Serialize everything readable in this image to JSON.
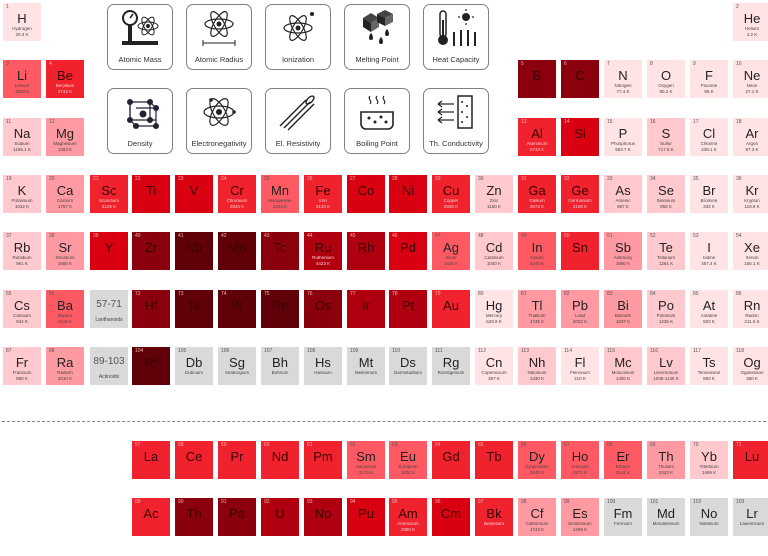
{
  "property_buttons": [
    {
      "key": "atomic_mass",
      "label": "Atomic Mass",
      "icon": "scale-atom-icon"
    },
    {
      "key": "atomic_radius",
      "label": "Atomic Radius",
      "icon": "atom-radius-icon"
    },
    {
      "key": "ionization",
      "label": "Ionization",
      "icon": "ionization-atom-icon"
    },
    {
      "key": "melting_point",
      "label": "Melting Point",
      "icon": "melting-ice-icon"
    },
    {
      "key": "heat_capacity",
      "label": "Heat Capacity",
      "icon": "thermometer-sun-icon"
    },
    {
      "key": "density",
      "label": "Density",
      "icon": "crystal-lattice-icon"
    },
    {
      "key": "electronegativity",
      "label": "Electronegativity",
      "icon": "electron-atom-icon"
    },
    {
      "key": "el_resistivity",
      "label": "El. Resistivity",
      "icon": "cable-icon"
    },
    {
      "key": "boiling_point",
      "label": "Boiling Point",
      "icon": "boiling-pot-icon"
    },
    {
      "key": "th_conductivity",
      "label": "Th. Conductivity",
      "icon": "heat-panel-icon"
    }
  ],
  "range_labels": [
    {
      "range": "57-71",
      "name": "Lanthanoids"
    },
    {
      "range": "89-103",
      "name": "Actinoids"
    }
  ],
  "elements": [
    {
      "n": 1,
      "s": "H",
      "name": "Hydrogen",
      "val": "20.3 K",
      "shade": 1
    },
    {
      "n": 2,
      "s": "He",
      "name": "Helium",
      "val": "4.2 K",
      "shade": 1
    },
    {
      "n": 3,
      "s": "Li",
      "name": "Lithium",
      "val": "1603 K",
      "shade": 4
    },
    {
      "n": 4,
      "s": "Be",
      "name": "Beryllium",
      "val": "2742 K",
      "shade": 5
    },
    {
      "n": 5,
      "s": "B",
      "name": "",
      "val": "",
      "shade": 8
    },
    {
      "n": 6,
      "s": "C",
      "name": "",
      "val": "",
      "shade": 8
    },
    {
      "n": 7,
      "s": "N",
      "name": "Nitrogen",
      "val": "77.4 K",
      "shade": 1
    },
    {
      "n": 8,
      "s": "O",
      "name": "Oxygen",
      "val": "90.2 K",
      "shade": 1
    },
    {
      "n": 9,
      "s": "F",
      "name": "Fluorine",
      "val": "85 K",
      "shade": 1
    },
    {
      "n": 10,
      "s": "Ne",
      "name": "Neon",
      "val": "27.1 K",
      "shade": 1
    },
    {
      "n": 11,
      "s": "Na",
      "name": "Sodium",
      "val": "1156.1 K",
      "shade": 2
    },
    {
      "n": 12,
      "s": "Mg",
      "name": "Magnesium",
      "val": "1363 K",
      "shade": 3
    },
    {
      "n": 13,
      "s": "Al",
      "name": "Aluminium",
      "val": "2743 K",
      "shade": 5
    },
    {
      "n": 14,
      "s": "Si",
      "name": "",
      "val": "",
      "shade": 6
    },
    {
      "n": 15,
      "s": "P",
      "name": "Phosphorus",
      "val": "553.7 K",
      "shade": 1
    },
    {
      "n": 16,
      "s": "S",
      "name": "Sulfur",
      "val": "717.8 K",
      "shade": 2
    },
    {
      "n": 17,
      "s": "Cl",
      "name": "Chlorine",
      "val": "239.1 K",
      "shade": 1
    },
    {
      "n": 18,
      "s": "Ar",
      "name": "Argon",
      "val": "87.3 K",
      "shade": 1
    },
    {
      "n": 19,
      "s": "K",
      "name": "Potassium",
      "val": "1032 K",
      "shade": 2
    },
    {
      "n": 20,
      "s": "Ca",
      "name": "Calcium",
      "val": "1757 K",
      "shade": 3
    },
    {
      "n": 21,
      "s": "Sc",
      "name": "Scandium",
      "val": "3109 K",
      "shade": 5
    },
    {
      "n": 22,
      "s": "Ti",
      "name": "",
      "val": "",
      "shade": 6
    },
    {
      "n": 23,
      "s": "V",
      "name": "",
      "val": "",
      "shade": 6
    },
    {
      "n": 24,
      "s": "Cr",
      "name": "Chromium",
      "val": "2944 K",
      "shade": 5
    },
    {
      "n": 25,
      "s": "Mn",
      "name": "Manganese",
      "val": "2334 K",
      "shade": 4
    },
    {
      "n": 26,
      "s": "Fe",
      "name": "Iron",
      "val": "3134 K",
      "shade": 5
    },
    {
      "n": 27,
      "s": "Co",
      "name": "",
      "val": "",
      "shade": 6
    },
    {
      "n": 28,
      "s": "Ni",
      "name": "",
      "val": "",
      "shade": 6
    },
    {
      "n": 29,
      "s": "Cu",
      "name": "Copper",
      "val": "2835 K",
      "shade": 5
    },
    {
      "n": 30,
      "s": "Zn",
      "name": "Zinc",
      "val": "1180 K",
      "shade": 2
    },
    {
      "n": 31,
      "s": "Ga",
      "name": "Gallium",
      "val": "2673 K",
      "shade": 5
    },
    {
      "n": 32,
      "s": "Ge",
      "name": "Germanium",
      "val": "3106 K",
      "shade": 5
    },
    {
      "n": 33,
      "s": "As",
      "name": "Arsenic",
      "val": "887 K",
      "shade": 2
    },
    {
      "n": 34,
      "s": "Se",
      "name": "Selenium",
      "val": "958 K",
      "shade": 2
    },
    {
      "n": 35,
      "s": "Br",
      "name": "Bromine",
      "val": "332 K",
      "shade": 1
    },
    {
      "n": 36,
      "s": "Kr",
      "name": "Krypton",
      "val": "119.9 K",
      "shade": 1
    },
    {
      "n": 37,
      "s": "Rb",
      "name": "Rubidium",
      "val": "961 K",
      "shade": 2
    },
    {
      "n": 38,
      "s": "Sr",
      "name": "Strontium",
      "val": "1655 K",
      "shade": 3
    },
    {
      "n": 39,
      "s": "Y",
      "name": "",
      "val": "",
      "shade": 6
    },
    {
      "n": 40,
      "s": "Zr",
      "name": "",
      "val": "",
      "shade": 8
    },
    {
      "n": 41,
      "s": "Nb",
      "name": "",
      "val": "",
      "shade": 9
    },
    {
      "n": 42,
      "s": "Mo",
      "name": "",
      "val": "",
      "shade": 9
    },
    {
      "n": 43,
      "s": "Tc",
      "name": "",
      "val": "",
      "shade": 8
    },
    {
      "n": 44,
      "s": "Ru",
      "name": "Ruthenium",
      "val": "4423 K",
      "shade": 7
    },
    {
      "n": 45,
      "s": "Rh",
      "name": "",
      "val": "",
      "shade": 7
    },
    {
      "n": 46,
      "s": "Pd",
      "name": "",
      "val": "",
      "shade": 6
    },
    {
      "n": 47,
      "s": "Ag",
      "name": "Silver",
      "val": "2435 K",
      "shade": 4
    },
    {
      "n": 48,
      "s": "Cd",
      "name": "Cadmium",
      "val": "1040 K",
      "shade": 2
    },
    {
      "n": 49,
      "s": "In",
      "name": "Indium",
      "val": "2345 K",
      "shade": 4
    },
    {
      "n": 50,
      "s": "Sn",
      "name": "",
      "val": "",
      "shade": 5
    },
    {
      "n": 51,
      "s": "Sb",
      "name": "Antimony",
      "val": "1860 K",
      "shade": 3
    },
    {
      "n": 52,
      "s": "Te",
      "name": "Tellurium",
      "val": "1261 K",
      "shade": 2
    },
    {
      "n": 53,
      "s": "I",
      "name": "Iodine",
      "val": "457.4 K",
      "shade": 1
    },
    {
      "n": 54,
      "s": "Xe",
      "name": "Xenon",
      "val": "165.1 K",
      "shade": 1
    },
    {
      "n": 55,
      "s": "Cs",
      "name": "Caesium",
      "val": "944 K",
      "shade": 2
    },
    {
      "n": 56,
      "s": "Ba",
      "name": "Barium",
      "val": "2118 K",
      "shade": 4
    },
    {
      "n": 72,
      "s": "Hf",
      "name": "",
      "val": "",
      "shade": 8
    },
    {
      "n": 73,
      "s": "Ta",
      "name": "",
      "val": "",
      "shade": 9
    },
    {
      "n": 74,
      "s": "W",
      "name": "",
      "val": "",
      "shade": 9
    },
    {
      "n": 75,
      "s": "Re",
      "name": "",
      "val": "",
      "shade": 9
    },
    {
      "n": 76,
      "s": "Os",
      "name": "",
      "val": "",
      "shade": 8
    },
    {
      "n": 77,
      "s": "Ir",
      "name": "",
      "val": "",
      "shade": 7
    },
    {
      "n": 78,
      "s": "Pt",
      "name": "",
      "val": "",
      "shade": 7
    },
    {
      "n": 79,
      "s": "Au",
      "name": "",
      "val": "",
      "shade": 5
    },
    {
      "n": 80,
      "s": "Hg",
      "name": "Mercury",
      "val": "629.9 K",
      "shade": 1
    },
    {
      "n": 81,
      "s": "Tl",
      "name": "Thallium",
      "val": "1745 K",
      "shade": 3
    },
    {
      "n": 82,
      "s": "Pb",
      "name": "Lead",
      "val": "2022 K",
      "shade": 3
    },
    {
      "n": 83,
      "s": "Bi",
      "name": "Bismuth",
      "val": "1837 K",
      "shade": 3
    },
    {
      "n": 84,
      "s": "Po",
      "name": "Polonium",
      "val": "1235 K",
      "shade": 2
    },
    {
      "n": 85,
      "s": "At",
      "name": "Astatine",
      "val": "503 K",
      "shade": 1
    },
    {
      "n": 86,
      "s": "Rn",
      "name": "Radon",
      "val": "211.5 K",
      "shade": 1
    },
    {
      "n": 87,
      "s": "Fr",
      "name": "Francium",
      "val": "890 K",
      "shade": 2
    },
    {
      "n": 88,
      "s": "Ra",
      "name": "Radium",
      "val": "2010 K",
      "shade": 3
    },
    {
      "n": 104,
      "s": "Rf",
      "name": "",
      "val": "",
      "shade": 9
    },
    {
      "n": 105,
      "s": "Db",
      "name": "Dubnium",
      "val": "",
      "shade": 0
    },
    {
      "n": 106,
      "s": "Sg",
      "name": "Seaborgium",
      "val": "",
      "shade": 0
    },
    {
      "n": 107,
      "s": "Bh",
      "name": "Bohrium",
      "val": "",
      "shade": 0
    },
    {
      "n": 108,
      "s": "Hs",
      "name": "Hassium",
      "val": "",
      "shade": 0
    },
    {
      "n": 109,
      "s": "Mt",
      "name": "Meitnerium",
      "val": "",
      "shade": 0
    },
    {
      "n": 110,
      "s": "Ds",
      "name": "Darmstadtium",
      "val": "",
      "shade": 0
    },
    {
      "n": 111,
      "s": "Rg",
      "name": "Roentgenium",
      "val": "",
      "shade": 0
    },
    {
      "n": 112,
      "s": "Cn",
      "name": "Copernicium",
      "val": "357 K",
      "shade": 1
    },
    {
      "n": 113,
      "s": "Nh",
      "name": "Nihonium",
      "val": "1430 K",
      "shade": 2
    },
    {
      "n": 114,
      "s": "Fl",
      "name": "Flerovium",
      "val": "210 K",
      "shade": 1
    },
    {
      "n": 115,
      "s": "Mc",
      "name": "Moscovium",
      "val": "1400 K",
      "shade": 2
    },
    {
      "n": 116,
      "s": "Lv",
      "name": "Livermorium",
      "val": "1035-1135 K",
      "shade": 2
    },
    {
      "n": 117,
      "s": "Ts",
      "name": "Tennessine",
      "val": "883 K",
      "shade": 1
    },
    {
      "n": 118,
      "s": "Og",
      "name": "Oganesson",
      "val": "350 K",
      "shade": 1
    },
    {
      "n": 57,
      "s": "La",
      "name": "",
      "val": "",
      "shade": 5
    },
    {
      "n": 58,
      "s": "Ce",
      "name": "",
      "val": "",
      "shade": 5
    },
    {
      "n": 59,
      "s": "Pr",
      "name": "",
      "val": "",
      "shade": 5
    },
    {
      "n": 60,
      "s": "Nd",
      "name": "",
      "val": "",
      "shade": 5
    },
    {
      "n": 61,
      "s": "Pm",
      "name": "",
      "val": "",
      "shade": 5
    },
    {
      "n": 62,
      "s": "Sm",
      "name": "Samarium",
      "val": "2173 K",
      "shade": 4
    },
    {
      "n": 63,
      "s": "Eu",
      "name": "Europium",
      "val": "1802 K",
      "shade": 4
    },
    {
      "n": 64,
      "s": "Gd",
      "name": "",
      "val": "",
      "shade": 5
    },
    {
      "n": 65,
      "s": "Tb",
      "name": "",
      "val": "",
      "shade": 5
    },
    {
      "n": 66,
      "s": "Dy",
      "name": "Dysprosium",
      "val": "2840 K",
      "shade": 4
    },
    {
      "n": 67,
      "s": "Ho",
      "name": "Holmium",
      "val": "2873 K",
      "shade": 4
    },
    {
      "n": 68,
      "s": "Er",
      "name": "Erbium",
      "val": "3141 K",
      "shade": 4
    },
    {
      "n": 69,
      "s": "Th",
      "name": "Thulium",
      "val": "2223 K",
      "shade": 3
    },
    {
      "n": 70,
      "s": "Yb",
      "name": "Ytterbium",
      "val": "1469 K",
      "shade": 2
    },
    {
      "n": 71,
      "s": "Lu",
      "name": "",
      "val": "",
      "shade": 5
    },
    {
      "n": 89,
      "s": "Ac",
      "name": "",
      "val": "",
      "shade": 5
    },
    {
      "n": 90,
      "s": "Th",
      "name": "",
      "val": "",
      "shade": 8
    },
    {
      "n": 91,
      "s": "Pa",
      "name": "",
      "val": "",
      "shade": 8
    },
    {
      "n": 92,
      "s": "U",
      "name": "",
      "val": "",
      "shade": 7
    },
    {
      "n": 93,
      "s": "Np",
      "name": "",
      "val": "",
      "shade": 7
    },
    {
      "n": 94,
      "s": "Pu",
      "name": "",
      "val": "",
      "shade": 6
    },
    {
      "n": 95,
      "s": "Am",
      "name": "Americium",
      "val": "2880 K",
      "shade": 5
    },
    {
      "n": 96,
      "s": "Cm",
      "name": "",
      "val": "",
      "shade": 6
    },
    {
      "n": 97,
      "s": "Bk",
      "name": "Berkelium",
      "val": "",
      "shade": 5
    },
    {
      "n": 98,
      "s": "Cf",
      "name": "Californium",
      "val": "1743 K",
      "shade": 3
    },
    {
      "n": 99,
      "s": "Es",
      "name": "Einsteinium",
      "val": "1269 K",
      "shade": 3
    },
    {
      "n": 100,
      "s": "Fm",
      "name": "Fermium",
      "val": "",
      "shade": 0
    },
    {
      "n": 101,
      "s": "Md",
      "name": "Mendelevium",
      "val": "",
      "shade": 0
    },
    {
      "n": 102,
      "s": "No",
      "name": "Nobelium",
      "val": "",
      "shade": 0
    },
    {
      "n": 103,
      "s": "Lr",
      "name": "Lawrencium",
      "val": "",
      "shade": 0
    }
  ],
  "shade_colors": [
    "#d9d9d9",
    "#ffe3e5",
    "#ffc9ce",
    "#ff9aa2",
    "#ff5a63",
    "#f0222e",
    "#d90012",
    "#b00010",
    "#8a000d",
    "#600008"
  ]
}
